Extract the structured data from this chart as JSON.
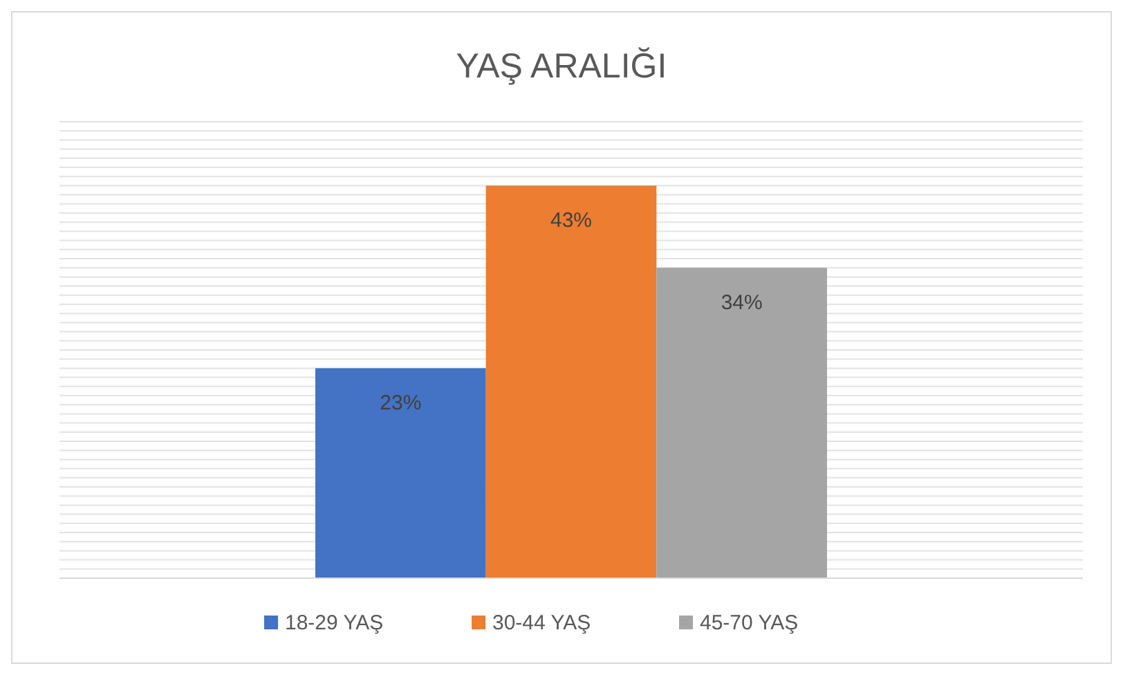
{
  "chart_data": {
    "type": "bar",
    "title": "YAŞ ARALIĞI",
    "categories": [
      null
    ],
    "series": [
      {
        "name": "18-29 YAŞ",
        "color": "#4472c4",
        "values": [
          23
        ],
        "value_labels": [
          "23%"
        ]
      },
      {
        "name": "30-44 YAŞ",
        "color": "#ed7d31",
        "values": [
          43
        ],
        "value_labels": [
          "43%"
        ]
      },
      {
        "name": "45-70 YAŞ",
        "color": "#a5a5a5",
        "values": [
          34
        ],
        "value_labels": [
          "34%"
        ]
      }
    ],
    "ylim": [
      0,
      50
    ],
    "yticks": [
      {
        "value": 0,
        "label": null
      },
      {
        "value": 1,
        "label": null
      },
      {
        "value": 2,
        "label": null
      },
      {
        "value": 3,
        "label": null
      },
      {
        "value": 4,
        "label": null
      },
      {
        "value": 5,
        "label": null
      },
      {
        "value": 6,
        "label": null
      },
      {
        "value": 7,
        "label": null
      },
      {
        "value": 8,
        "label": null
      },
      {
        "value": 9,
        "label": null
      },
      {
        "value": 10,
        "label": null
      },
      {
        "value": 11,
        "label": null
      },
      {
        "value": 12,
        "label": null
      },
      {
        "value": 13,
        "label": null
      },
      {
        "value": 14,
        "label": null
      },
      {
        "value": 15,
        "label": null
      },
      {
        "value": 16,
        "label": null
      },
      {
        "value": 17,
        "label": null
      },
      {
        "value": 18,
        "label": null
      },
      {
        "value": 19,
        "label": null
      },
      {
        "value": 20,
        "label": null
      },
      {
        "value": 21,
        "label": null
      },
      {
        "value": 22,
        "label": null
      },
      {
        "value": 23,
        "label": null
      },
      {
        "value": 24,
        "label": null
      },
      {
        "value": 25,
        "label": null
      },
      {
        "value": 26,
        "label": null
      },
      {
        "value": 27,
        "label": null
      },
      {
        "value": 28,
        "label": null
      },
      {
        "value": 29,
        "label": null
      },
      {
        "value": 30,
        "label": null
      },
      {
        "value": 31,
        "label": null
      },
      {
        "value": 32,
        "label": null
      },
      {
        "value": 33,
        "label": null
      },
      {
        "value": 34,
        "label": null
      },
      {
        "value": 35,
        "label": null
      },
      {
        "value": 36,
        "label": null
      },
      {
        "value": 37,
        "label": null
      },
      {
        "value": 38,
        "label": null
      },
      {
        "value": 39,
        "label": null
      },
      {
        "value": 40,
        "label": null
      },
      {
        "value": 41,
        "label": null
      },
      {
        "value": 42,
        "label": null
      },
      {
        "value": 43,
        "label": null
      },
      {
        "value": 44,
        "label": null
      },
      {
        "value": 45,
        "label": null
      },
      {
        "value": 46,
        "label": null
      },
      {
        "value": 47,
        "label": null
      },
      {
        "value": 48,
        "label": null
      },
      {
        "value": 49,
        "label": null
      },
      {
        "value": 50,
        "label": null
      }
    ],
    "grid": "y",
    "legend": "bottom"
  }
}
